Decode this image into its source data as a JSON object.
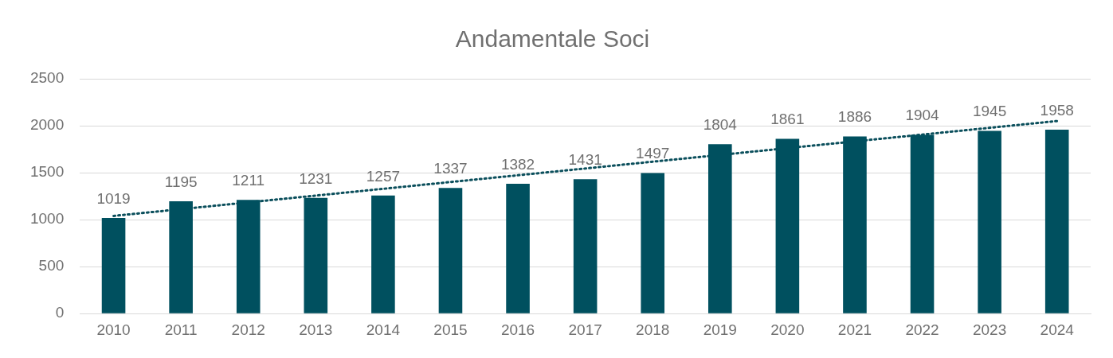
{
  "chart_data": {
    "type": "bar",
    "title": "Andamentale Soci",
    "categories": [
      "2010",
      "2011",
      "2012",
      "2013",
      "2014",
      "2015",
      "2016",
      "2017",
      "2018",
      "2019",
      "2020",
      "2021",
      "2022",
      "2023",
      "2024"
    ],
    "series": [
      {
        "color": "#00505f",
        "values": [
          1019,
          1195,
          1211,
          1231,
          1257,
          1337,
          1382,
          1431,
          1497,
          1804,
          1861,
          1886,
          1904,
          1945,
          1958
        ],
        "value_labels": [
          "1019",
          "1195",
          "1211",
          "1231",
          "1257",
          "1337",
          "1382",
          "1431",
          "1497",
          "1804",
          "1861",
          "1886",
          "1904",
          "1945",
          "1958"
        ]
      },
      {
        "type": "line",
        "color": "#0b4f5c",
        "line_style": "dotted",
        "values": [
          1040,
          null,
          null,
          null,
          null,
          null,
          null,
          null,
          null,
          null,
          null,
          null,
          null,
          null,
          2050
        ]
      }
    ],
    "ylim": [
      0,
      2500
    ],
    "yticks": [
      0,
      500,
      1000,
      1500,
      2000,
      2500
    ],
    "grid": "y",
    "legend": false
  }
}
